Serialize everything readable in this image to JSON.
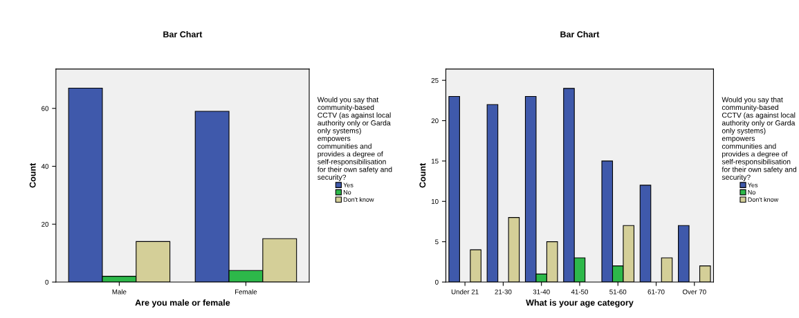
{
  "chart_data": [
    {
      "type": "bar",
      "title": "Bar Chart",
      "xlabel": "Are you male or female",
      "ylabel": "Count",
      "categories": [
        "Male",
        "Female"
      ],
      "series": [
        {
          "name": "Yes",
          "color": "#3f59ab",
          "values": [
            67,
            59
          ]
        },
        {
          "name": "No",
          "color": "#2db84a",
          "values": [
            2,
            4
          ]
        },
        {
          "name": "Don't know",
          "color": "#d4cf98",
          "values": [
            14,
            15
          ]
        }
      ],
      "ylim": [
        0,
        73.6
      ],
      "yticks": [
        0,
        20,
        40,
        60
      ],
      "grid": false,
      "legend": "right",
      "legend_title": "Would you say that\ncommunity-based\nCCTV (as against local\nauthority only or Garda\nonly systems)\nempowers\ncommunities and\nprovides a degree of\nself-responsibilisation\nfor their own safety and\nsecurity?"
    },
    {
      "type": "bar",
      "title": "Bar Chart",
      "xlabel": "What is your age category",
      "ylabel": "Count",
      "categories": [
        "Under 21",
        "21-30",
        "31-40",
        "41-50",
        "51-60",
        "61-70",
        "Over 70"
      ],
      "series": [
        {
          "name": "Yes",
          "color": "#3f59ab",
          "values": [
            23,
            22,
            23,
            24,
            15,
            12,
            7
          ]
        },
        {
          "name": "No",
          "color": "#2db84a",
          "values": [
            null,
            null,
            1,
            3,
            2,
            null,
            null
          ]
        },
        {
          "name": "Don't know",
          "color": "#d4cf98",
          "values": [
            4,
            8,
            5,
            null,
            7,
            3,
            2
          ]
        }
      ],
      "ylim": [
        0,
        26.4
      ],
      "yticks": [
        0,
        5,
        10,
        15,
        20,
        25
      ],
      "grid": false,
      "legend": "right",
      "legend_title": "Would you say that\ncommunity-based\nCCTV (as against local\nauthority only or Garda\nonly systems)\nempowers\ncommunities and\nprovides a degree of\nself-responsibilisation\nfor their own safety and\nsecurity?"
    }
  ]
}
